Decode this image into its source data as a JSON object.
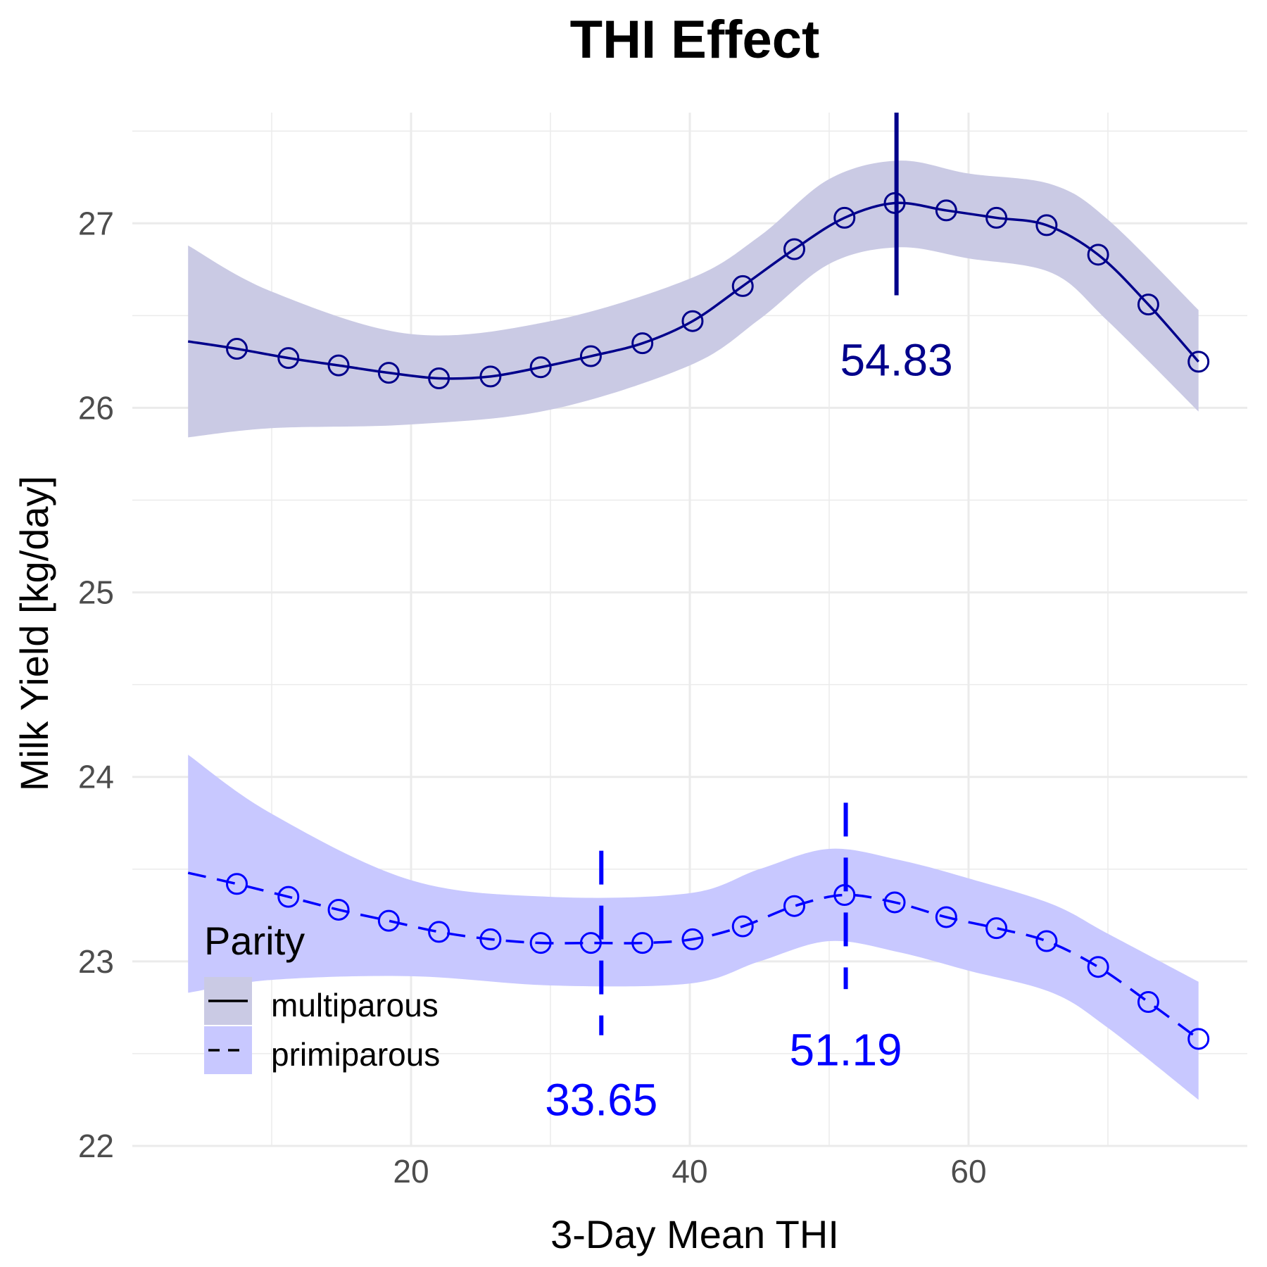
{
  "chart_data": {
    "type": "line",
    "title": "THI Effect",
    "xlabel": "3-Day Mean THI",
    "ylabel": "Milk Yield [kg/day]",
    "xlim": [
      0,
      80
    ],
    "ylim": [
      22,
      27.6
    ],
    "x_ticks": [
      20,
      40,
      60
    ],
    "y_ticks": [
      22,
      23,
      24,
      25,
      26,
      27
    ],
    "grid": true,
    "legend": {
      "title": "Parity",
      "placement": "bottom-left",
      "entries": [
        {
          "label": "multiparous",
          "linetype": "solid",
          "fill": "#cacae4"
        },
        {
          "label": "primiparous",
          "linetype": "dashed",
          "fill": "#c8c8ff"
        }
      ]
    },
    "series": [
      {
        "name": "multiparous",
        "color": "#00008b",
        "ribbon_color": "#cacae4",
        "linetype": "solid",
        "line_start": [
          4,
          26.36
        ],
        "points": [
          [
            7.5,
            26.32
          ],
          [
            11.2,
            26.27
          ],
          [
            14.8,
            26.23
          ],
          [
            18.4,
            26.19
          ],
          [
            22.0,
            26.16
          ],
          [
            25.7,
            26.17
          ],
          [
            29.3,
            26.22
          ],
          [
            32.9,
            26.28
          ],
          [
            36.6,
            26.35
          ],
          [
            40.2,
            26.47
          ],
          [
            43.8,
            26.66
          ],
          [
            47.5,
            26.86
          ],
          [
            51.1,
            27.03
          ],
          [
            54.7,
            27.11
          ],
          [
            58.4,
            27.07
          ],
          [
            62.0,
            27.03
          ],
          [
            65.6,
            26.99
          ],
          [
            69.3,
            26.83
          ],
          [
            72.9,
            26.56
          ],
          [
            76.5,
            26.25
          ]
        ],
        "ribbon_x": [
          4,
          10,
          20,
          30,
          40,
          45,
          50,
          55,
          60,
          66,
          70,
          76.5
        ],
        "ribbon_lower": [
          25.84,
          25.89,
          25.91,
          25.99,
          26.23,
          26.48,
          26.78,
          26.87,
          26.81,
          26.73,
          26.47,
          25.98
        ],
        "ribbon_upper": [
          26.88,
          26.63,
          26.4,
          26.47,
          26.7,
          26.93,
          27.24,
          27.34,
          27.27,
          27.21,
          27.02,
          26.53
        ],
        "annotations": [
          {
            "x": 54.83,
            "label": "54.83",
            "y_range": [
              26.61,
              27.6
            ],
            "label_y": 26.26
          }
        ]
      },
      {
        "name": "primiparous",
        "color": "#0000ff",
        "ribbon_color": "#c8c8ff",
        "linetype": "dashed",
        "line_start": [
          4,
          23.48
        ],
        "points": [
          [
            7.5,
            23.42
          ],
          [
            11.2,
            23.35
          ],
          [
            14.8,
            23.28
          ],
          [
            18.4,
            23.22
          ],
          [
            22.0,
            23.16
          ],
          [
            25.7,
            23.12
          ],
          [
            29.3,
            23.1
          ],
          [
            32.9,
            23.1
          ],
          [
            36.6,
            23.1
          ],
          [
            40.2,
            23.12
          ],
          [
            43.8,
            23.19
          ],
          [
            47.5,
            23.3
          ],
          [
            51.1,
            23.36
          ],
          [
            54.7,
            23.32
          ],
          [
            58.4,
            23.24
          ],
          [
            62.0,
            23.18
          ],
          [
            65.6,
            23.11
          ],
          [
            69.3,
            22.97
          ],
          [
            72.9,
            22.78
          ],
          [
            76.5,
            22.58
          ]
        ],
        "ribbon_x": [
          4,
          10,
          20,
          30,
          40,
          45,
          50,
          55,
          60,
          66,
          70,
          76.5
        ],
        "ribbon_lower": [
          22.83,
          22.9,
          22.92,
          22.87,
          22.88,
          23.0,
          23.11,
          23.05,
          22.95,
          22.83,
          22.64,
          22.25
        ],
        "ribbon_upper": [
          24.12,
          23.8,
          23.44,
          23.35,
          23.37,
          23.5,
          23.61,
          23.55,
          23.45,
          23.31,
          23.15,
          22.89
        ],
        "annotations": [
          {
            "x": 33.65,
            "label": "33.65",
            "y_range": [
              22.6,
              23.6
            ],
            "label_y": 22.25
          },
          {
            "x": 51.19,
            "label": "51.19",
            "y_range": [
              22.85,
              23.86
            ],
            "label_y": 22.52
          }
        ]
      }
    ]
  }
}
